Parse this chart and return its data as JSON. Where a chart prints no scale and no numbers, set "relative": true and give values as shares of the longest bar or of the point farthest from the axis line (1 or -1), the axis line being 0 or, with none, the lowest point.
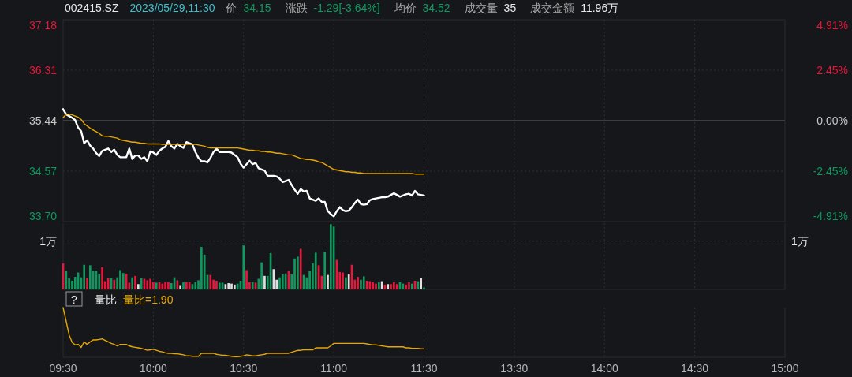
{
  "chart_data": [
    {
      "type": "line",
      "title": "002415.SZ",
      "subtitle": "2023/05/29,11:30",
      "annotations": [
        "价",
        "34.15",
        "涨跌",
        "-1.29[-3.64%]",
        "均价",
        "34.52",
        "成交量",
        "35",
        "成交金额",
        "11.96万"
      ],
      "categories": [
        null,
        null,
        null,
        null,
        null,
        null,
        null,
        null,
        null,
        null,
        null,
        null,
        null,
        null,
        null,
        null,
        null,
        null,
        null,
        null,
        null,
        null,
        null,
        null,
        null,
        null,
        null,
        null,
        null,
        null,
        null,
        null,
        null,
        null,
        null,
        null,
        null,
        null,
        null,
        null,
        null,
        null,
        null,
        null,
        null,
        null,
        null,
        null,
        null,
        null,
        null,
        null,
        null,
        null,
        null,
        null,
        null,
        null,
        null,
        null,
        null,
        null,
        null,
        null,
        null,
        null,
        null,
        null,
        null,
        null,
        null,
        null,
        null,
        null,
        null,
        null,
        null,
        null,
        null,
        null,
        null,
        null,
        null,
        null,
        null,
        null,
        null,
        null,
        null,
        null,
        null,
        null,
        null,
        null,
        null,
        null,
        null,
        null,
        null,
        null,
        null,
        null,
        null,
        null,
        null,
        null,
        null,
        null,
        null,
        null,
        null,
        null,
        null,
        null,
        null,
        null,
        null,
        null,
        null,
        null,
        null,
        null,
        null,
        null,
        null,
        null,
        null,
        null,
        null,
        null,
        null,
        null,
        null,
        null,
        null,
        null,
        null,
        null,
        null,
        null,
        null,
        null,
        null,
        null,
        null,
        null,
        null,
        null,
        null,
        null,
        null,
        null,
        null,
        null,
        null,
        null,
        null,
        null,
        null,
        null,
        null,
        null,
        null,
        null,
        null,
        null,
        null,
        null,
        null,
        null,
        null,
        null,
        null,
        null,
        null,
        null,
        null,
        null,
        null,
        null,
        null,
        null,
        null,
        null,
        null,
        null,
        null,
        null,
        null,
        null,
        null,
        null,
        null,
        null,
        null,
        null,
        null,
        null,
        null,
        null,
        null,
        null,
        null,
        null,
        null,
        null,
        null,
        null,
        null,
        null,
        null,
        null,
        null,
        null,
        null,
        null,
        null,
        null,
        null,
        null,
        null,
        null,
        null,
        null,
        null,
        null,
        null,
        null,
        null,
        null,
        null,
        null,
        null,
        null,
        null,
        null,
        null,
        null,
        null,
        null,
        null
      ],
      "series": [
        {
          "color": "#ffffff",
          "values": [
            35.64,
            35.55,
            35.52,
            35.49,
            35.45,
            35.32,
            35.26,
            35.05,
            35.1,
            35.01,
            34.96,
            34.88,
            34.83,
            34.92,
            34.94,
            34.96,
            34.9,
            34.94,
            34.85,
            34.81,
            34.81,
            34.81,
            34.96,
            34.78,
            34.84,
            34.84,
            34.78,
            34.81,
            34.74,
            34.91,
            34.89,
            34.85,
            34.92,
            34.96,
            34.99,
            35.09,
            35.0,
            34.96,
            35.04,
            35.0,
            34.97,
            35.07,
            35.05,
            35.03,
            34.9,
            34.8,
            34.74,
            34.74,
            34.72,
            34.8,
            34.9,
            34.96,
            34.9,
            34.9,
            34.9,
            34.9,
            34.89,
            34.85,
            34.81,
            34.7,
            34.63,
            34.69,
            34.75,
            34.69,
            34.71,
            34.62,
            34.6,
            34.58,
            34.49,
            34.49,
            34.49,
            34.48,
            34.44,
            34.38,
            34.4,
            34.42,
            34.33,
            34.25,
            34.18,
            34.26,
            34.22,
            34.23,
            34.1,
            34.08,
            34.06,
            34.1,
            34.04,
            34.04,
            33.88,
            33.83,
            33.79,
            33.88,
            33.95,
            33.9,
            33.88,
            33.89,
            33.95,
            34.02,
            34.08,
            34.0,
            33.99,
            34.0,
            34.07,
            34.09,
            34.1,
            34.11,
            34.12,
            34.12,
            34.13,
            34.16,
            34.19,
            34.16,
            34.13,
            34.15,
            34.17,
            34.18,
            34.15,
            34.23,
            34.17,
            34.16,
            34.15,
            null,
            null,
            null,
            null,
            null,
            null,
            null,
            null,
            null,
            null,
            null,
            null,
            null,
            null,
            null,
            null,
            null,
            null,
            null,
            null,
            null,
            null,
            null,
            null,
            null,
            null,
            null,
            null,
            null,
            null,
            null,
            null,
            null,
            null,
            null,
            null,
            null,
            null,
            null,
            null,
            null,
            null,
            null,
            null,
            null,
            null,
            null,
            null,
            null,
            null,
            null,
            null,
            null,
            null,
            null,
            null,
            null,
            null,
            null,
            null,
            null,
            null,
            null,
            null,
            null,
            null,
            null,
            null,
            null,
            null,
            null,
            null,
            null,
            null,
            null,
            null,
            null,
            null,
            null,
            null,
            null,
            null,
            null,
            null,
            null,
            null,
            null,
            null,
            null,
            null,
            null,
            null,
            null,
            null,
            null,
            null,
            null,
            null,
            null,
            null,
            null,
            null,
            null,
            null,
            null,
            null,
            null,
            null,
            null,
            null,
            null,
            null,
            null,
            null,
            null,
            null,
            null,
            null,
            null,
            null
          ]
        },
        {
          "color": "#e6a700",
          "values": [
            35.49,
            35.55,
            35.55,
            35.54,
            35.52,
            35.5,
            35.46,
            35.39,
            35.35,
            35.31,
            35.28,
            35.25,
            35.22,
            35.18,
            35.17,
            35.17,
            35.16,
            35.15,
            35.14,
            35.11,
            35.1,
            35.09,
            35.08,
            35.07,
            35.07,
            35.06,
            35.05,
            35.05,
            35.04,
            35.04,
            35.04,
            35.04,
            35.04,
            35.03,
            35.03,
            35.03,
            35.03,
            35.03,
            35.03,
            35.03,
            35.03,
            35.03,
            35.03,
            35.03,
            35.03,
            35.02,
            35.01,
            35.0,
            34.98,
            34.97,
            34.97,
            34.97,
            34.97,
            34.97,
            34.97,
            34.97,
            34.97,
            34.97,
            34.97,
            34.96,
            34.95,
            34.94,
            34.93,
            34.93,
            34.92,
            34.92,
            34.91,
            34.91,
            34.9,
            34.9,
            34.89,
            34.88,
            34.88,
            34.87,
            34.86,
            34.85,
            34.85,
            34.83,
            34.81,
            34.79,
            34.78,
            34.77,
            34.77,
            34.76,
            34.75,
            34.73,
            34.72,
            34.69,
            34.66,
            34.63,
            34.6,
            34.59,
            34.58,
            34.57,
            34.56,
            34.56,
            34.55,
            34.55,
            34.54,
            34.54,
            34.53,
            34.53,
            34.53,
            34.53,
            34.53,
            34.53,
            34.53,
            34.53,
            34.53,
            34.53,
            34.53,
            34.53,
            34.53,
            34.53,
            34.53,
            34.53,
            34.53,
            34.52,
            34.52,
            34.52,
            34.52,
            null,
            null,
            null,
            null,
            null,
            null,
            null,
            null,
            null,
            null,
            null,
            null,
            null,
            null,
            null,
            null,
            null,
            null,
            null,
            null,
            null,
            null,
            null,
            null,
            null,
            null,
            null,
            null,
            null,
            null,
            null,
            null,
            null,
            null,
            null,
            null,
            null,
            null,
            null,
            null,
            null,
            null,
            null,
            null,
            null,
            null,
            null,
            null,
            null,
            null,
            null,
            null,
            null,
            null,
            null,
            null,
            null,
            null,
            null,
            null,
            null,
            null,
            null,
            null,
            null,
            null,
            null,
            null,
            null,
            null,
            null,
            null,
            null,
            null,
            null,
            null,
            null,
            null,
            null,
            null,
            null,
            null,
            null,
            null,
            null,
            null,
            null,
            null,
            null,
            null,
            null,
            null,
            null,
            null,
            null,
            null,
            null,
            null,
            null,
            null,
            null,
            null,
            null,
            null,
            null,
            null,
            null,
            null,
            null,
            null,
            null,
            null,
            null,
            null,
            null,
            null,
            null,
            null,
            null,
            null
          ]
        }
      ],
      "ylim": [
        33.7,
        37.18
      ],
      "yticks": [
        {
          "value": 33.7,
          "label": "33.70"
        },
        34.57,
        35.44,
        36.31,
        37.18
      ],
      "y2lim": [
        -4.91,
        4.91
      ],
      "y2ticks": [
        {
          "value": -4.91,
          "label": "-4.91%"
        },
        {
          "value": -2.45,
          "label": "-2.45%"
        },
        {
          "value": 0,
          "label": "0.00%"
        },
        {
          "value": 2.45,
          "label": "2.45%"
        },
        {
          "value": 4.91,
          "label": "4.91%"
        }
      ],
      "ref_lines": [
        {
          "axis": "y",
          "value": 35.44,
          "color": "#3a3d42"
        }
      ],
      "grid": true,
      "tick_labels": "y"
    },
    {
      "type": "bar",
      "annotations": [
        "1万"
      ],
      "categories": [
        null,
        null,
        null,
        null,
        null,
        null,
        null,
        null,
        null,
        null,
        null,
        null,
        null,
        null,
        null,
        null,
        null,
        null,
        null,
        null,
        null,
        null,
        null,
        null,
        null,
        null,
        null,
        null,
        null,
        null,
        null,
        null,
        null,
        null,
        null,
        null,
        null,
        null,
        null,
        null,
        null,
        null,
        null,
        null,
        null,
        null,
        null,
        null,
        null,
        null,
        null,
        null,
        null,
        null,
        null,
        null,
        null,
        null,
        null,
        null,
        null,
        null,
        null,
        null,
        null,
        null,
        null,
        null,
        null,
        null,
        null,
        null,
        null,
        null,
        null,
        null,
        null,
        null,
        null,
        null,
        null,
        null,
        null,
        null,
        null,
        null,
        null,
        null,
        null,
        null,
        null,
        null,
        null,
        null,
        null,
        null,
        null,
        null,
        null,
        null,
        null,
        null,
        null,
        null,
        null,
        null,
        null,
        null,
        null,
        null,
        null,
        null,
        null,
        null,
        null,
        null,
        null,
        null,
        null,
        null,
        null,
        null,
        null,
        null,
        null,
        null,
        null,
        null,
        null,
        null,
        null,
        null,
        null,
        null,
        null,
        null,
        null,
        null,
        null,
        null,
        null,
        null,
        null,
        null,
        null,
        null,
        null,
        null,
        null,
        null,
        null,
        null,
        null,
        null,
        null,
        null,
        null,
        null,
        null,
        null,
        null,
        null,
        null,
        null,
        null,
        null,
        null,
        null,
        null,
        null,
        null,
        null,
        null,
        null,
        null,
        null,
        null,
        null,
        null,
        null,
        null,
        null,
        null,
        null,
        null,
        null,
        null,
        null,
        null,
        null,
        null,
        null,
        null,
        null,
        null,
        null,
        null,
        null,
        null,
        null,
        null,
        null,
        null,
        null,
        null,
        null,
        null,
        null,
        null,
        null,
        null,
        null,
        null,
        null,
        null,
        null,
        null,
        null,
        null,
        null,
        null,
        null,
        null,
        null,
        null,
        null,
        null,
        null,
        null,
        null,
        null,
        null,
        null,
        null,
        null,
        null,
        null,
        null,
        null,
        null,
        null
      ],
      "values": [
        0.54,
        0.38,
        0.23,
        0.18,
        0.26,
        0.35,
        0.25,
        0.51,
        0.24,
        0.5,
        0.39,
        0.39,
        0.31,
        0.46,
        0.17,
        0.23,
        0.23,
        0.2,
        0.25,
        0.4,
        0.34,
        0.32,
        0.14,
        0.25,
        0.28,
        0.11,
        0.23,
        0.22,
        0.19,
        0.22,
        0.15,
        0.14,
        0.15,
        0.12,
        0.15,
        0.15,
        0.13,
        0.25,
        0.19,
        0.09,
        0.15,
        0.15,
        0.15,
        0.11,
        0.15,
        0.19,
        0.88,
        0.72,
        0.3,
        0.3,
        0.2,
        0.18,
        0.14,
        0.14,
        0.11,
        0.13,
        0.12,
        0.1,
        0.12,
        0.18,
        0.91,
        0.4,
        0.15,
        0.15,
        0.14,
        0.22,
        0.56,
        0.28,
        0.28,
        0.75,
        0.42,
        0.2,
        0.25,
        0.31,
        0.33,
        0.38,
        0.31,
        0.64,
        0.68,
        0.84,
        0.3,
        0.25,
        0.38,
        0.54,
        0.76,
        0.5,
        0.28,
        0.78,
        0.3,
        1.35,
        1.3,
        0.61,
        0.36,
        0.35,
        0.25,
        0.31,
        0.51,
        0.2,
        0.26,
        0.2,
        0.27,
        0.18,
        0.17,
        0.15,
        0.12,
        0.15,
        0.17,
        0.1,
        0.11,
        0.11,
        0.15,
        0.11,
        0.15,
        0.12,
        0.1,
        0.15,
        0.12,
        0.18,
        0.17,
        0.24,
        0.04,
        null,
        null,
        null,
        null,
        null,
        null,
        null,
        null,
        null,
        null,
        null,
        null,
        null,
        null,
        null,
        null,
        null,
        null,
        null,
        null,
        null,
        null,
        null,
        null,
        null,
        null,
        null,
        null,
        null,
        null,
        null,
        null,
        null,
        null,
        null,
        null,
        null,
        null,
        null,
        null,
        null,
        null,
        null,
        null,
        null,
        null,
        null,
        null,
        null,
        null,
        null,
        null,
        null,
        null,
        null,
        null,
        null,
        null,
        null,
        null,
        null,
        null,
        null,
        null,
        null,
        null,
        null,
        null,
        null,
        null,
        null,
        null,
        null,
        null,
        null,
        null,
        null,
        null,
        null,
        null,
        null,
        null,
        null,
        null,
        null,
        null,
        null,
        null,
        null,
        null,
        null,
        null,
        null,
        null,
        null,
        null,
        null,
        null,
        null,
        null,
        null,
        null,
        null,
        null,
        null,
        null,
        null,
        null,
        null,
        null,
        null,
        null,
        null,
        null,
        null,
        null,
        null,
        null,
        null,
        null
      ],
      "colors": [
        "#e8173b",
        "#0e9a5f",
        "#0e9a5f",
        "#0e9a5f",
        "#0e9a5f",
        "#0e9a5f",
        "#0e9a5f",
        "#0e9a5f",
        "#e8173b",
        "#0e9a5f",
        "#0e9a5f",
        "#0e9a5f",
        "#0e9a5f",
        "#e8173b",
        "#e8173b",
        "#e8173b",
        "#0e9a5f",
        "#e8173b",
        "#0e9a5f",
        "#0e9a5f",
        "#0e9a5f",
        "#e8173b",
        "#e8173b",
        "#0e9a5f",
        "#e8173b",
        "#e0e0e0",
        "#0e9a5f",
        "#e8173b",
        "#e8173b",
        "#e8173b",
        "#e8173b",
        "#0e9a5f",
        "#e8173b",
        "#e8173b",
        "#e8173b",
        "#e8173b",
        "#0e9a5f",
        "#0e9a5f",
        "#e8173b",
        "#e0e0e0",
        "#0e9a5f",
        "#e8173b",
        "#e8173b",
        "#0e9a5f",
        "#0e9a5f",
        "#0e9a5f",
        "#0e9a5f",
        "#0e9a5f",
        "#0e9a5f",
        "#e8173b",
        "#e8173b",
        "#e8173b",
        "#0e9a5f",
        "#0e9a5f",
        "#e0e0e0",
        "#e0e0e0",
        "#e0e0e0",
        "#e0e0e0",
        "#0e9a5f",
        "#0e9a5f",
        "#0e9a5f",
        "#e8173b",
        "#e8173b",
        "#0e9a5f",
        "#e8173b",
        "#0e9a5f",
        "#0e9a5f",
        "#e0e0e0",
        "#0e9a5f",
        "#0e9a5f",
        "#e0e0e0",
        "#e0e0e0",
        "#0e9a5f",
        "#0e9a5f",
        "#0e9a5f",
        "#e8173b",
        "#0e9a5f",
        "#0e9a5f",
        "#0e9a5f",
        "#e8173b",
        "#0e9a5f",
        "#0e9a5f",
        "#0e9a5f",
        "#0e9a5f",
        "#0e9a5f",
        "#e8173b",
        "#e8173b",
        "#0e9a5f",
        "#e0e0e0",
        "#0e9a5f",
        "#0e9a5f",
        "#e8173b",
        "#e8173b",
        "#e8173b",
        "#0e9a5f",
        "#e0e0e0",
        "#e8173b",
        "#e8173b",
        "#e8173b",
        "#0e9a5f",
        "#0e9a5f",
        "#e8173b",
        "#e8173b",
        "#e8173b",
        "#e8173b",
        "#0e9a5f",
        "#e0e0e0",
        "#e8173b",
        "#e0e0e0",
        "#e8173b",
        "#e8173b",
        "#e8173b",
        "#0e9a5f",
        "#0e9a5f",
        "#e8173b",
        "#e8173b",
        "#0e9a5f",
        "#e8173b",
        "#0e9a5f",
        "#e0e0e0",
        "#0e9a5f",
        null,
        null,
        null,
        null,
        null,
        null,
        null,
        null,
        null,
        null,
        null,
        null,
        null,
        null,
        null,
        null,
        null,
        null,
        null,
        null,
        null,
        null,
        null,
        null,
        null,
        null,
        null,
        null,
        null,
        null,
        null,
        null,
        null,
        null,
        null,
        null,
        null,
        null,
        null,
        null,
        null,
        null,
        null,
        null,
        null,
        null,
        null,
        null,
        null,
        null,
        null,
        null,
        null,
        null,
        null,
        null,
        null,
        null,
        null,
        null,
        null,
        null,
        null,
        null,
        null,
        null,
        null,
        null,
        null,
        null,
        null,
        null,
        null,
        null,
        null,
        null,
        null,
        null,
        null,
        null,
        null,
        null,
        null,
        null,
        null,
        null,
        null,
        null,
        null,
        null,
        null,
        null,
        null,
        null,
        null,
        null,
        null,
        null,
        null,
        null,
        null,
        null,
        null,
        null,
        null,
        null,
        null,
        null,
        null,
        null,
        null,
        null,
        null,
        null,
        null,
        null,
        null,
        null,
        null,
        null
      ],
      "ylim": [
        0,
        1.37
      ],
      "yticks": [
        {
          "value": 1,
          "label": "1万"
        }
      ],
      "grid": true,
      "tick_labels": "y"
    },
    {
      "type": "line",
      "relative": true,
      "annotations": [
        "?",
        "量比",
        "量比=1.90"
      ],
      "categories": [
        "09:30",
        null,
        null,
        null,
        null,
        null,
        null,
        null,
        null,
        null,
        null,
        null,
        null,
        null,
        null,
        null,
        null,
        null,
        null,
        null,
        null,
        null,
        null,
        null,
        null,
        null,
        null,
        null,
        null,
        null,
        "10:00",
        null,
        null,
        null,
        null,
        null,
        null,
        null,
        null,
        null,
        null,
        null,
        null,
        null,
        null,
        null,
        null,
        null,
        null,
        null,
        null,
        null,
        null,
        null,
        null,
        null,
        null,
        null,
        null,
        null,
        "10:30",
        null,
        null,
        null,
        null,
        null,
        null,
        null,
        null,
        null,
        null,
        null,
        null,
        null,
        null,
        null,
        null,
        null,
        null,
        null,
        null,
        null,
        null,
        null,
        null,
        null,
        null,
        null,
        null,
        null,
        "11:00",
        null,
        null,
        null,
        null,
        null,
        null,
        null,
        null,
        null,
        null,
        null,
        null,
        null,
        null,
        null,
        null,
        null,
        null,
        null,
        null,
        null,
        null,
        null,
        null,
        null,
        null,
        null,
        null,
        null,
        "11:30",
        null,
        null,
        null,
        null,
        null,
        null,
        null,
        null,
        null,
        null,
        null,
        null,
        null,
        null,
        null,
        null,
        null,
        null,
        null,
        null,
        null,
        null,
        null,
        null,
        null,
        null,
        null,
        null,
        null,
        "13:30",
        null,
        null,
        null,
        null,
        null,
        null,
        null,
        null,
        null,
        null,
        null,
        null,
        null,
        null,
        null,
        null,
        null,
        null,
        null,
        null,
        null,
        null,
        null,
        null,
        null,
        null,
        null,
        null,
        null,
        "14:00",
        null,
        null,
        null,
        null,
        null,
        null,
        null,
        null,
        null,
        null,
        null,
        null,
        null,
        null,
        null,
        null,
        null,
        null,
        null,
        null,
        null,
        null,
        null,
        null,
        null,
        null,
        null,
        null,
        null,
        "14:30",
        null,
        null,
        null,
        null,
        null,
        null,
        null,
        null,
        null,
        null,
        null,
        null,
        null,
        null,
        null,
        null,
        null,
        null,
        null,
        null,
        null,
        null,
        null,
        null,
        null,
        null,
        null,
        null,
        null,
        "15:00"
      ],
      "series": [
        {
          "color": "#e6a700",
          "values": [
            1,
            0.73,
            0.45,
            0.3,
            0.25,
            0.26,
            0.2,
            0.31,
            0.26,
            0.31,
            0.35,
            0.35,
            0.36,
            0.37,
            0.34,
            0.31,
            0.28,
            0.26,
            0.23,
            0.26,
            0.26,
            0.26,
            0.23,
            0.21,
            0.2,
            0.19,
            0.18,
            0.16,
            0.14,
            0.15,
            0.16,
            0.14,
            0.12,
            0.11,
            0.09,
            0.08,
            0.08,
            0.07,
            0.07,
            0.06,
            0.05,
            0.03,
            0.03,
            0.02,
            0.02,
            0.02,
            0.08,
            0.08,
            0.08,
            0.08,
            0.08,
            0.06,
            0.05,
            0.04,
            0.04,
            0.03,
            0.02,
            0.01,
            0.01,
            0.02,
            0.03,
            0.05,
            0.04,
            0.03,
            0.03,
            0.04,
            0.05,
            0.06,
            0.08,
            0.08,
            0.08,
            0.08,
            0.08,
            0.08,
            0.08,
            0.08,
            0.1,
            0.12,
            0.14,
            0.14,
            0.15,
            0.15,
            0.15,
            0.15,
            0.19,
            0.19,
            0.19,
            0.19,
            0.19,
            0.23,
            0.28,
            0.28,
            0.28,
            0.28,
            0.28,
            0.28,
            0.28,
            0.28,
            0.28,
            0.28,
            0.28,
            0.27,
            0.26,
            0.25,
            0.25,
            0.24,
            0.23,
            0.22,
            0.21,
            0.21,
            0.21,
            0.21,
            0.21,
            0.21,
            0.19,
            0.19,
            0.18,
            0.18,
            0.18,
            0.17,
            0.17,
            null,
            null,
            null,
            null,
            null,
            null,
            null,
            null,
            null,
            null,
            null,
            null,
            null,
            null,
            null,
            null,
            null,
            null,
            null,
            null,
            null,
            null,
            null,
            null,
            null,
            null,
            null,
            null,
            null,
            null,
            null,
            null,
            null,
            null,
            null,
            null,
            null,
            null,
            null,
            null,
            null,
            null,
            null,
            null,
            null,
            null,
            null,
            null,
            null,
            null,
            null,
            null,
            null,
            null,
            null,
            null,
            null,
            null,
            null,
            null,
            null,
            null,
            null,
            null,
            null,
            null,
            null,
            null,
            null,
            null,
            null,
            null,
            null,
            null,
            null,
            null,
            null,
            null,
            null,
            null,
            null,
            null,
            null,
            null,
            null,
            null,
            null,
            null,
            null,
            null,
            null,
            null,
            null,
            null,
            null,
            null,
            null,
            null,
            null,
            null,
            null,
            null,
            null,
            null,
            null,
            null,
            null,
            null,
            null,
            null,
            null,
            null,
            null,
            null,
            null,
            null,
            null,
            null,
            null,
            null
          ]
        }
      ],
      "grid": "x",
      "tick_labels": "x"
    }
  ]
}
